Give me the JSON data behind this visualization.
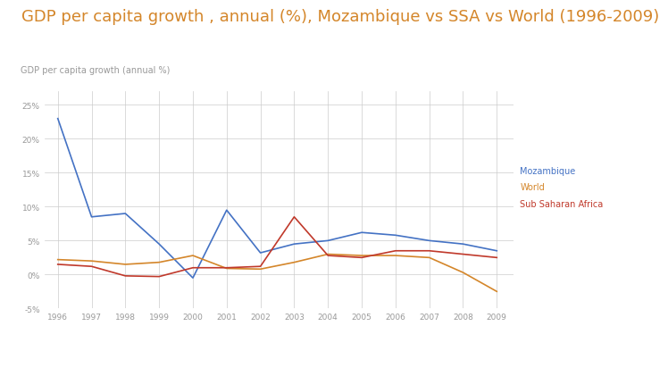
{
  "title": "GDP per capita growth , annual (%), Mozambique vs SSA vs World (1996-2009)",
  "title_color": "#D4862A",
  "title_fontsize": 13,
  "ylabel": "GDP per capita growth (annual %)",
  "ylabel_fontsize": 7,
  "ylabel_color": "#999999",
  "background_color": "#ffffff",
  "plot_bg_color": "#ffffff",
  "years": [
    1996,
    1997,
    1998,
    1999,
    2000,
    2001,
    2002,
    2003,
    2004,
    2005,
    2006,
    2007,
    2008,
    2009
  ],
  "mozambique": [
    23.0,
    8.5,
    9.0,
    4.5,
    -0.5,
    9.5,
    3.2,
    4.5,
    5.0,
    6.2,
    5.8,
    5.0,
    4.5,
    3.5
  ],
  "world": [
    2.2,
    2.0,
    1.5,
    1.8,
    2.8,
    0.9,
    0.8,
    1.8,
    3.0,
    2.8,
    2.8,
    2.5,
    0.3,
    -2.5
  ],
  "ssa": [
    1.5,
    1.2,
    -0.2,
    -0.3,
    1.0,
    1.0,
    1.2,
    8.5,
    2.8,
    2.5,
    3.5,
    3.5,
    3.0,
    2.5
  ],
  "mozambique_color": "#4472C4",
  "world_color": "#D4862A",
  "ssa_color": "#C0392B",
  "grid_color": "#CCCCCC",
  "tick_color": "#999999",
  "tick_fontsize": 6.5,
  "ylim": [
    -5,
    27
  ],
  "yticks": [
    -5,
    0,
    5,
    10,
    15,
    20,
    25
  ],
  "ytick_labels": [
    "-5%",
    "0%",
    "5%",
    "10%",
    "15%",
    "20%",
    "25%"
  ],
  "legend_labels": [
    "Mozambique",
    "World",
    "Sub Saharan Africa"
  ],
  "legend_colors": [
    "#4472C4",
    "#D4862A",
    "#C0392B"
  ],
  "legend_fontsize": 7,
  "bottom_bar_color": "#45B5AA"
}
